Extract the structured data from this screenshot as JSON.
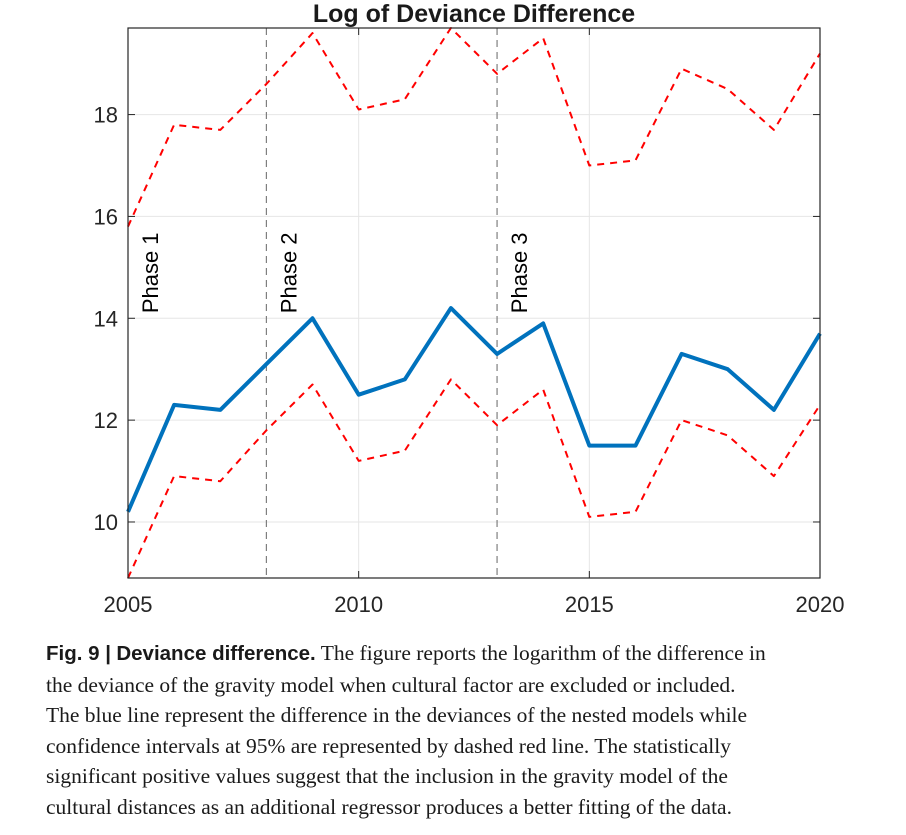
{
  "chart_data": {
    "type": "line",
    "title": "Log of Deviance Difference",
    "xlabel": "",
    "ylabel": "",
    "xlim": [
      2005,
      2020
    ],
    "ylim": [
      8.9,
      19.7
    ],
    "xticks": [
      2005,
      2010,
      2015,
      2020
    ],
    "yticks": [
      10,
      12,
      14,
      16,
      18
    ],
    "grid": true,
    "x": [
      2005,
      2006,
      2007,
      2008,
      2009,
      2010,
      2011,
      2012,
      2013,
      2014,
      2015,
      2016,
      2017,
      2018,
      2019,
      2020
    ],
    "series": [
      {
        "role": "estimate",
        "style": "solid",
        "color": "#0072BD",
        "values": [
          10.2,
          12.3,
          12.2,
          13.1,
          14.0,
          12.5,
          12.8,
          14.2,
          13.3,
          13.9,
          11.5,
          11.5,
          13.3,
          13.0,
          12.2,
          13.7
        ]
      },
      {
        "role": "upper-95-ci",
        "style": "dashed",
        "color": "#FF0000",
        "values": [
          15.8,
          17.8,
          17.7,
          18.6,
          19.6,
          18.1,
          18.3,
          19.7,
          18.8,
          19.5,
          17.0,
          17.1,
          18.9,
          18.5,
          17.7,
          19.2
        ]
      },
      {
        "role": "lower-95-ci",
        "style": "dashed",
        "color": "#FF0000",
        "values": [
          8.9,
          10.9,
          10.8,
          11.8,
          12.7,
          11.2,
          11.4,
          12.8,
          11.9,
          12.6,
          10.1,
          10.2,
          12.0,
          11.7,
          10.9,
          12.3
        ]
      }
    ],
    "phases": [
      {
        "label": "Phase 1",
        "x": 2005
      },
      {
        "label": "Phase 2",
        "x": 2008
      },
      {
        "label": "Phase 3",
        "x": 2013
      }
    ]
  },
  "caption": {
    "label": "Fig. 9 |",
    "title": "Deviance difference.",
    "line1": "The figure reports the logarithm of the difference in",
    "line2": "the deviance of the gravity model when cultural factor are excluded or included.",
    "line3": "The blue line represent the difference in the deviances of the nested models while",
    "line4": "confidence intervals at 95% are represented by dashed red line. The statistically",
    "line5": "significant positive values suggest that the inclusion in the gravity model of the",
    "line6": "cultural distances as an additional regressor produces a better fitting of the data."
  }
}
